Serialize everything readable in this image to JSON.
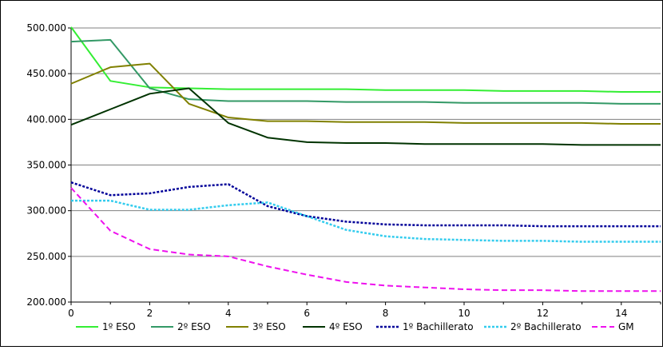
{
  "chart_data": {
    "type": "line",
    "title": "",
    "xlabel": "",
    "ylabel": "",
    "xlim": [
      0,
      15
    ],
    "ylim": [
      200000,
      500000
    ],
    "x_ticks": [
      0,
      2,
      4,
      6,
      8,
      10,
      12,
      14
    ],
    "x_tick_labels": [
      "0",
      "2",
      "4",
      "6",
      "8",
      "10",
      "12",
      "14"
    ],
    "y_ticks": [
      200000,
      250000,
      300000,
      350000,
      400000,
      450000,
      500000
    ],
    "y_tick_labels": [
      "200.000",
      "250.000",
      "300.000",
      "350.000",
      "400.000",
      "450.000",
      "500.000"
    ],
    "grid": "horizontal",
    "legend_position": "bottom",
    "x": [
      0,
      1,
      2,
      3,
      4,
      5,
      6,
      7,
      8,
      9,
      10,
      11,
      12,
      13,
      14,
      15
    ],
    "series": [
      {
        "name": "1º ESO",
        "color": "#33ee33",
        "style": "solid",
        "values": [
          501000,
          442000,
          435000,
          434000,
          433000,
          433000,
          433000,
          433000,
          432000,
          432000,
          432000,
          431000,
          431000,
          431000,
          430000,
          430000
        ]
      },
      {
        "name": "2º ESO",
        "color": "#339966",
        "style": "solid",
        "values": [
          485000,
          487000,
          434000,
          422000,
          420000,
          420000,
          420000,
          419000,
          419000,
          419000,
          418000,
          418000,
          418000,
          418000,
          417000,
          417000
        ]
      },
      {
        "name": "3º ESO",
        "color": "#808000",
        "style": "solid",
        "values": [
          439000,
          457000,
          461000,
          417000,
          402000,
          398000,
          398000,
          397000,
          397000,
          397000,
          396000,
          396000,
          396000,
          396000,
          395000,
          395000
        ]
      },
      {
        "name": "4º ESO",
        "color": "#003300",
        "style": "solid",
        "values": [
          394000,
          411000,
          428000,
          434000,
          396000,
          380000,
          375000,
          374000,
          374000,
          373000,
          373000,
          373000,
          373000,
          372000,
          372000,
          372000
        ]
      },
      {
        "name": "1º Bachillerato",
        "color": "#000099",
        "style": "dotted",
        "values": [
          331000,
          317000,
          319000,
          326000,
          329000,
          305000,
          294000,
          288000,
          285000,
          284000,
          284000,
          284000,
          283000,
          283000,
          283000,
          283000
        ]
      },
      {
        "name": "2º Bachillerato",
        "color": "#33ccee",
        "style": "dotted",
        "values": [
          311000,
          311000,
          301000,
          301000,
          306000,
          309000,
          294000,
          279000,
          272000,
          269000,
          268000,
          267000,
          267000,
          266000,
          266000,
          266000
        ]
      },
      {
        "name": "GM",
        "color": "#ee11ee",
        "style": "dashed",
        "values": [
          325000,
          278000,
          258000,
          252000,
          250000,
          239000,
          230000,
          222000,
          218000,
          216000,
          214000,
          213000,
          213000,
          212000,
          212000,
          212000
        ]
      }
    ]
  }
}
